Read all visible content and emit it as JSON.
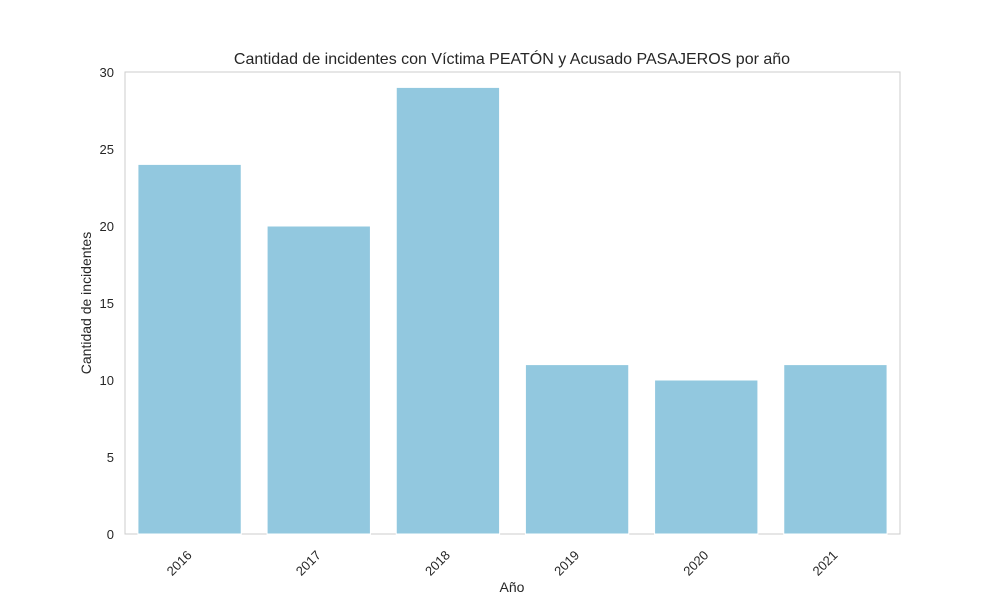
{
  "chart_data": {
    "type": "bar",
    "title": "Cantidad de incidentes con Víctima PEATÓN y Acusado PASAJEROS por año",
    "xlabel": "Año",
    "ylabel": "Cantidad de incidentes",
    "categories": [
      "2016",
      "2017",
      "2018",
      "2019",
      "2020",
      "2021"
    ],
    "values": [
      24,
      20,
      29,
      11,
      10,
      11
    ],
    "ylim": [
      0,
      30
    ],
    "yticks": [
      0,
      5,
      10,
      15,
      20,
      25,
      30
    ],
    "grid": false,
    "bar_color": "#92c8df",
    "frame_color": "#cccccc"
  }
}
